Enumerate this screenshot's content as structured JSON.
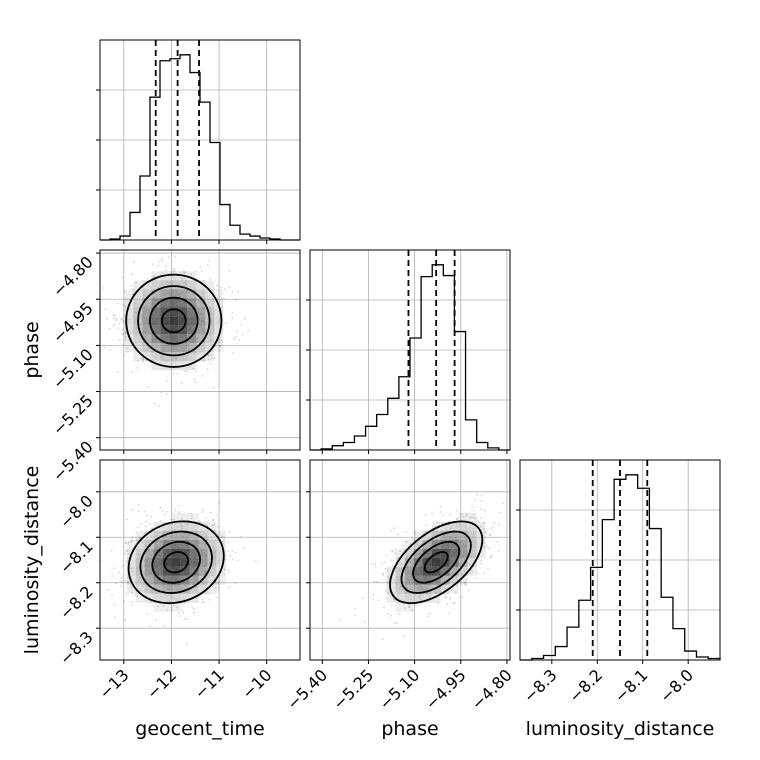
{
  "chart_data": {
    "type": "corner",
    "parameters": [
      "geocent_time",
      "phase",
      "luminosity_distance"
    ],
    "axis_labels": {
      "geocent_time": "geocent_time",
      "phase": "phase",
      "luminosity_distance": "luminosity_distance"
    },
    "ranges": {
      "geocent_time": [
        -13.5,
        -9.3
      ],
      "phase": [
        -5.44,
        -4.79
      ],
      "luminosity_distance": [
        -8.37,
        -7.93
      ]
    },
    "ticks": {
      "geocent_time": [
        -13,
        -12,
        -11,
        -10
      ],
      "phase": [
        -5.4,
        -5.25,
        -5.1,
        -4.95,
        -4.8
      ],
      "luminosity_distance": [
        -8.3,
        -8.2,
        -8.1,
        -8.0
      ]
    },
    "tick_labels": {
      "geocent_time": [
        "−13",
        "−12",
        "−11",
        "−10"
      ],
      "phase": [
        "−5.40",
        "−5.25",
        "−5.10",
        "−4.95",
        "−4.80"
      ],
      "luminosity_distance": [
        "−8.3",
        "−8.2",
        "−8.1",
        "−8.0"
      ]
    },
    "grid": true,
    "histograms": {
      "geocent_time": {
        "bin_edges_range": [
          -13.5,
          -9.3
        ],
        "counts": [
          0,
          1,
          4,
          28,
          65,
          145,
          182,
          184,
          188,
          170,
          140,
          99,
          36,
          15,
          6,
          4,
          2,
          1,
          0,
          0
        ],
        "quantiles": [
          -12.33,
          -11.87,
          -11.42
        ]
      },
      "phase": {
        "bin_edges_range": [
          -5.44,
          -4.79
        ],
        "counts": [
          0,
          1,
          4,
          7,
          13,
          22,
          33,
          48,
          68,
          104,
          161,
          172,
          162,
          110,
          28,
          7,
          2,
          0
        ],
        "quantiles": [
          -5.12,
          -5.03,
          -4.97
        ]
      },
      "luminosity_distance": {
        "bin_edges_range": [
          -8.37,
          -7.93
        ],
        "counts": [
          0,
          1,
          3,
          9,
          22,
          40,
          62,
          94,
          121,
          124,
          115,
          88,
          42,
          21,
          6,
          2,
          1
        ],
        "quantiles": [
          -8.21,
          -8.15,
          -8.09
        ]
      }
    },
    "posterior_2d": {
      "phase_vs_geocent_time": {
        "x": "geocent_time",
        "y": "phase",
        "peak": [
          -11.95,
          -5.02
        ],
        "sigma": [
          0.5,
          0.075
        ],
        "correlation": 0.0,
        "contour_levels_sigma": [
          0.5,
          1.0,
          1.5,
          2.0
        ]
      },
      "luminosity_distance_vs_geocent_time": {
        "x": "geocent_time",
        "y": "luminosity_distance",
        "peak": [
          -11.9,
          -8.155
        ],
        "sigma": [
          0.5,
          0.045
        ],
        "correlation": 0.15,
        "contour_levels_sigma": [
          0.5,
          1.0,
          1.5,
          2.0
        ]
      },
      "luminosity_distance_vs_phase": {
        "x": "phase",
        "y": "luminosity_distance",
        "peak": [
          -5.03,
          -8.155
        ],
        "sigma": [
          0.075,
          0.045
        ],
        "correlation": 0.55,
        "contour_levels_sigma": [
          0.5,
          1.0,
          1.5,
          2.0
        ]
      }
    }
  }
}
